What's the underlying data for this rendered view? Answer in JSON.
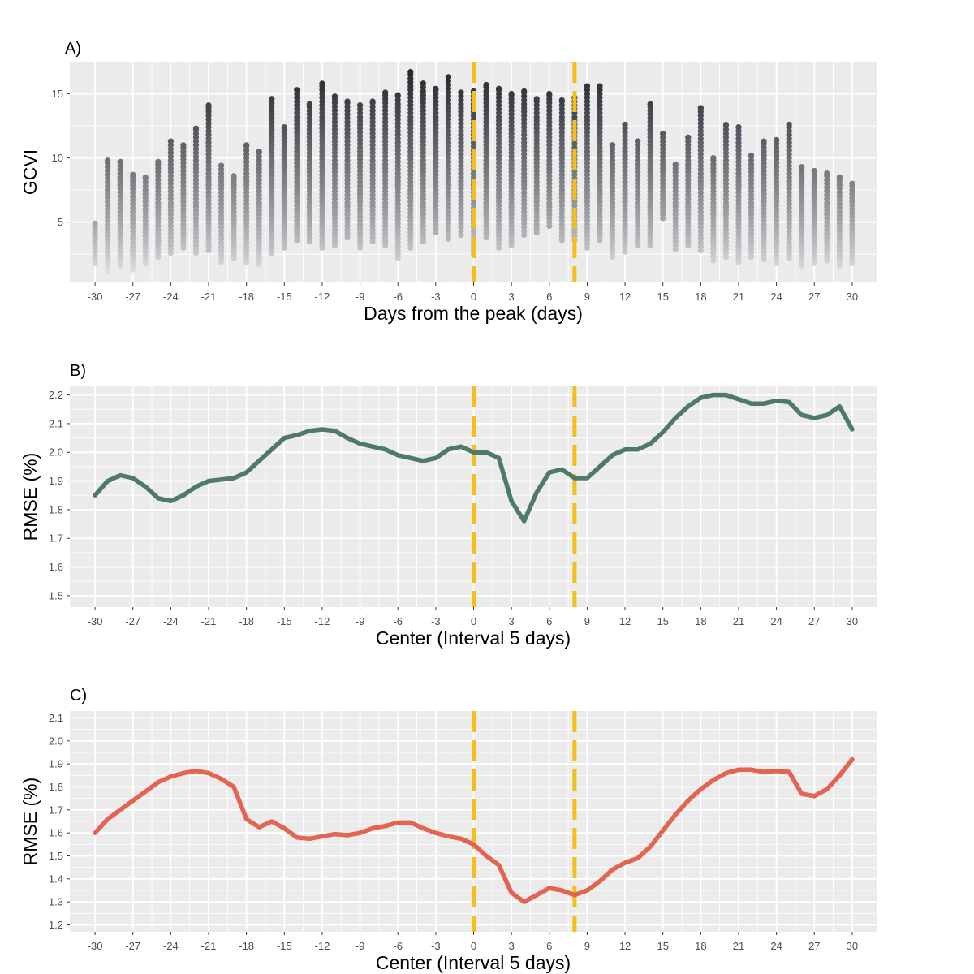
{
  "colors": {
    "panel_bg": "#EBEBEB",
    "grid": "#FFFFFF",
    "vline": "#F5BE1B",
    "line_b": "#4E7A6E",
    "line_c": "#E26451",
    "point_high": "#262A30",
    "point_low": "#E3E5E9",
    "tick_text": "#4D4D4D",
    "title_text": "#000000"
  },
  "chart_data": [
    {
      "type": "scatter",
      "panel_label": "A)",
      "xlabel": "Days from the peak (days)",
      "ylabel": "GCVI",
      "xlim": [
        -32,
        32
      ],
      "ylim": [
        0.3,
        17.5
      ],
      "x_ticks": [
        -30,
        -27,
        -24,
        -21,
        -18,
        -15,
        -12,
        -9,
        -6,
        -3,
        0,
        3,
        6,
        9,
        12,
        15,
        18,
        21,
        24,
        27,
        30
      ],
      "y_ticks": [
        5,
        10,
        15
      ],
      "vlines": [
        0,
        8
      ],
      "color_scale": "point shade by GCVI: light at low values, dark at high values",
      "columns": [
        {
          "x": -30,
          "min": 1.8,
          "max": 4.9
        },
        {
          "x": -29,
          "min": 1.2,
          "max": 9.8
        },
        {
          "x": -28,
          "min": 1.6,
          "max": 9.7
        },
        {
          "x": -27,
          "min": 1.3,
          "max": 8.7
        },
        {
          "x": -26,
          "min": 1.8,
          "max": 8.5
        },
        {
          "x": -25,
          "min": 2.3,
          "max": 9.7
        },
        {
          "x": -24,
          "min": 2.6,
          "max": 11.3
        },
        {
          "x": -23,
          "min": 3.0,
          "max": 11.0
        },
        {
          "x": -22,
          "min": 2.6,
          "max": 12.3
        },
        {
          "x": -21,
          "min": 2.8,
          "max": 14.1
        },
        {
          "x": -20,
          "min": 1.9,
          "max": 9.4
        },
        {
          "x": -19,
          "min": 2.2,
          "max": 8.6
        },
        {
          "x": -18,
          "min": 1.9,
          "max": 11.0
        },
        {
          "x": -17,
          "min": 1.7,
          "max": 10.5
        },
        {
          "x": -16,
          "min": 2.6,
          "max": 14.6
        },
        {
          "x": -15,
          "min": 3.0,
          "max": 12.4
        },
        {
          "x": -14,
          "min": 3.6,
          "max": 15.3
        },
        {
          "x": -13,
          "min": 3.5,
          "max": 14.2
        },
        {
          "x": -12,
          "min": 3.0,
          "max": 15.8
        },
        {
          "x": -11,
          "min": 3.2,
          "max": 14.8
        },
        {
          "x": -10,
          "min": 3.8,
          "max": 14.4
        },
        {
          "x": -9,
          "min": 3.0,
          "max": 14.1
        },
        {
          "x": -8,
          "min": 3.5,
          "max": 14.4
        },
        {
          "x": -7,
          "min": 3.2,
          "max": 15.1
        },
        {
          "x": -6,
          "min": 2.2,
          "max": 14.9
        },
        {
          "x": -5,
          "min": 3.0,
          "max": 16.7
        },
        {
          "x": -4,
          "min": 3.5,
          "max": 15.8
        },
        {
          "x": -3,
          "min": 4.2,
          "max": 15.4
        },
        {
          "x": -2,
          "min": 3.7,
          "max": 16.3
        },
        {
          "x": -1,
          "min": 4.0,
          "max": 15.1
        },
        {
          "x": 0,
          "min": 2.5,
          "max": 15.2
        },
        {
          "x": 1,
          "min": 3.8,
          "max": 15.7
        },
        {
          "x": 2,
          "min": 3.0,
          "max": 15.4
        },
        {
          "x": 3,
          "min": 3.2,
          "max": 15.0
        },
        {
          "x": 4,
          "min": 4.0,
          "max": 15.2
        },
        {
          "x": 5,
          "min": 4.2,
          "max": 14.6
        },
        {
          "x": 6,
          "min": 4.7,
          "max": 15.0
        },
        {
          "x": 7,
          "min": 3.6,
          "max": 14.5
        },
        {
          "x": 8,
          "min": 3.6,
          "max": 14.7
        },
        {
          "x": 9,
          "min": 3.0,
          "max": 15.6
        },
        {
          "x": 10,
          "min": 3.6,
          "max": 15.6
        },
        {
          "x": 11,
          "min": 2.3,
          "max": 11.0
        },
        {
          "x": 12,
          "min": 2.7,
          "max": 12.6
        },
        {
          "x": 13,
          "min": 3.2,
          "max": 11.3
        },
        {
          "x": 14,
          "min": 3.2,
          "max": 14.2
        },
        {
          "x": 15,
          "min": 5.3,
          "max": 11.9
        },
        {
          "x": 16,
          "min": 2.9,
          "max": 9.5
        },
        {
          "x": 17,
          "min": 3.2,
          "max": 11.6
        },
        {
          "x": 18,
          "min": 2.8,
          "max": 13.9
        },
        {
          "x": 19,
          "min": 2.0,
          "max": 10.0
        },
        {
          "x": 20,
          "min": 2.3,
          "max": 12.6
        },
        {
          "x": 21,
          "min": 1.9,
          "max": 12.4
        },
        {
          "x": 22,
          "min": 2.3,
          "max": 10.2
        },
        {
          "x": 23,
          "min": 2.1,
          "max": 11.3
        },
        {
          "x": 24,
          "min": 1.8,
          "max": 11.4
        },
        {
          "x": 25,
          "min": 2.2,
          "max": 12.6
        },
        {
          "x": 26,
          "min": 1.6,
          "max": 9.3
        },
        {
          "x": 27,
          "min": 1.8,
          "max": 9.0
        },
        {
          "x": 28,
          "min": 2.0,
          "max": 8.8
        },
        {
          "x": 29,
          "min": 1.6,
          "max": 8.5
        },
        {
          "x": 30,
          "min": 1.8,
          "max": 8.0
        }
      ]
    },
    {
      "type": "line",
      "panel_label": "B)",
      "xlabel": "Center (Interval 5 days)",
      "ylabel": "RMSE (%)",
      "xlim": [
        -32,
        32
      ],
      "ylim": [
        1.46,
        2.23
      ],
      "x_ticks": [
        -30,
        -27,
        -24,
        -21,
        -18,
        -15,
        -12,
        -9,
        -6,
        -3,
        0,
        3,
        6,
        9,
        12,
        15,
        18,
        21,
        24,
        27,
        30
      ],
      "y_ticks": [
        1.5,
        1.6,
        1.7,
        1.8,
        1.9,
        2.0,
        2.1,
        2.2
      ],
      "vlines": [
        0,
        8
      ],
      "x": [
        -30,
        -29,
        -28,
        -27,
        -26,
        -25,
        -24,
        -23,
        -22,
        -21,
        -20,
        -19,
        -18,
        -17,
        -16,
        -15,
        -14,
        -13,
        -12,
        -11,
        -10,
        -9,
        -8,
        -7,
        -6,
        -5,
        -4,
        -3,
        -2,
        -1,
        0,
        1,
        2,
        3,
        4,
        5,
        6,
        7,
        8,
        9,
        10,
        11,
        12,
        13,
        14,
        15,
        16,
        17,
        18,
        19,
        20,
        21,
        22,
        23,
        24,
        25,
        26,
        27,
        28,
        29,
        30
      ],
      "values": [
        1.85,
        1.9,
        1.92,
        1.91,
        1.88,
        1.84,
        1.83,
        1.85,
        1.88,
        1.9,
        1.905,
        1.91,
        1.93,
        1.97,
        2.01,
        2.05,
        2.06,
        2.075,
        2.08,
        2.075,
        2.05,
        2.03,
        2.02,
        2.01,
        1.99,
        1.98,
        1.97,
        1.98,
        2.01,
        2.02,
        2.0,
        2.0,
        1.98,
        1.83,
        1.76,
        1.86,
        1.93,
        1.94,
        1.91,
        1.91,
        1.95,
        1.99,
        2.01,
        2.01,
        2.03,
        2.07,
        2.12,
        2.16,
        2.19,
        2.2,
        2.2,
        2.185,
        2.17,
        2.17,
        2.18,
        2.175,
        2.13,
        2.12,
        2.13,
        2.16,
        2.08
      ]
    },
    {
      "type": "line",
      "panel_label": "C)",
      "xlabel": "Center (Interval 5 days)",
      "ylabel": "RMSE (%)",
      "xlim": [
        -32,
        32
      ],
      "ylim": [
        1.17,
        2.13
      ],
      "x_ticks": [
        -30,
        -27,
        -24,
        -21,
        -18,
        -15,
        -12,
        -9,
        -6,
        -3,
        0,
        3,
        6,
        9,
        12,
        15,
        18,
        21,
        24,
        27,
        30
      ],
      "y_ticks": [
        1.2,
        1.3,
        1.4,
        1.5,
        1.6,
        1.7,
        1.8,
        1.9,
        2.0,
        2.1
      ],
      "vlines": [
        0,
        8
      ],
      "x": [
        -30,
        -29,
        -28,
        -27,
        -26,
        -25,
        -24,
        -23,
        -22,
        -21,
        -20,
        -19,
        -18,
        -17,
        -16,
        -15,
        -14,
        -13,
        -12,
        -11,
        -10,
        -9,
        -8,
        -7,
        -6,
        -5,
        -4,
        -3,
        -2,
        -1,
        0,
        1,
        2,
        3,
        4,
        5,
        6,
        7,
        8,
        9,
        10,
        11,
        12,
        13,
        14,
        15,
        16,
        17,
        18,
        19,
        20,
        21,
        22,
        23,
        24,
        25,
        26,
        27,
        28,
        29,
        30
      ],
      "values": [
        1.6,
        1.66,
        1.7,
        1.74,
        1.78,
        1.82,
        1.845,
        1.86,
        1.87,
        1.86,
        1.835,
        1.8,
        1.66,
        1.625,
        1.65,
        1.62,
        1.58,
        1.575,
        1.585,
        1.595,
        1.59,
        1.6,
        1.62,
        1.63,
        1.645,
        1.645,
        1.62,
        1.6,
        1.585,
        1.575,
        1.55,
        1.5,
        1.46,
        1.34,
        1.3,
        1.33,
        1.36,
        1.35,
        1.33,
        1.35,
        1.39,
        1.44,
        1.47,
        1.49,
        1.54,
        1.61,
        1.68,
        1.74,
        1.79,
        1.83,
        1.86,
        1.875,
        1.875,
        1.865,
        1.87,
        1.865,
        1.77,
        1.76,
        1.79,
        1.85,
        1.92
      ]
    }
  ]
}
